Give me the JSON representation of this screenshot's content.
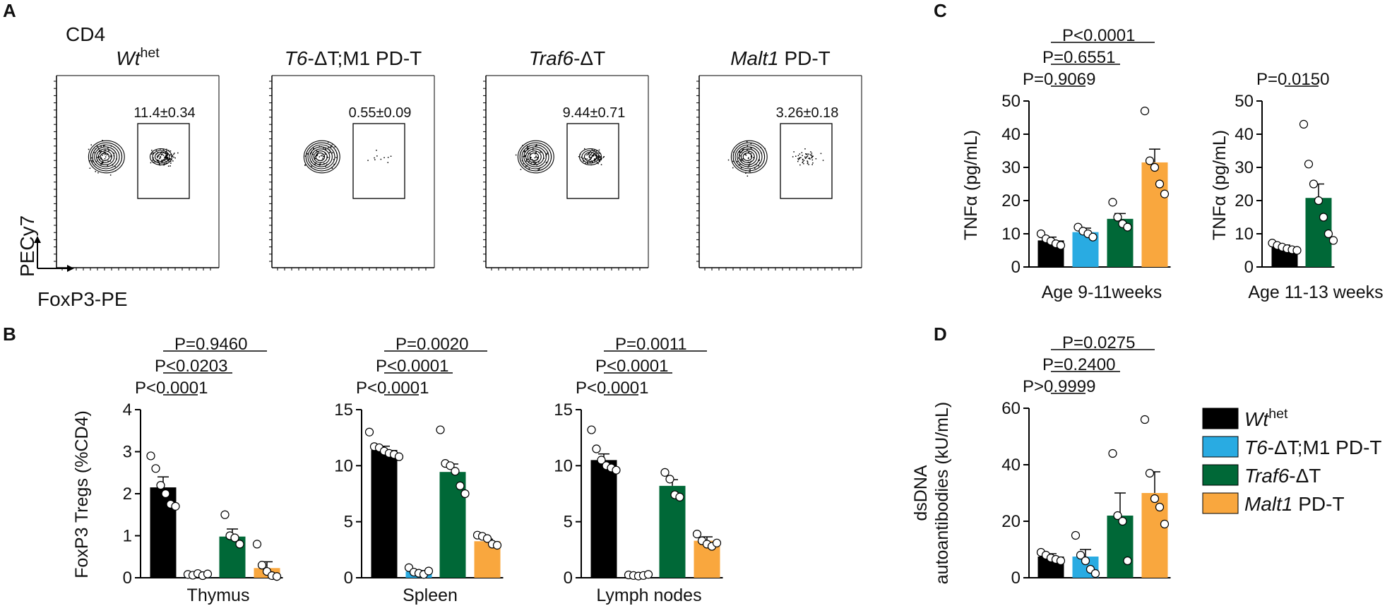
{
  "panels": {
    "a": "A",
    "b": "B",
    "c": "C",
    "d": "D"
  },
  "colors": {
    "wt": "#000000",
    "t6m1": "#29abe2",
    "traf6": "#006837",
    "malt1": "#f9a73e"
  },
  "flow": {
    "population": "CD4",
    "y_axis": "PECy7",
    "x_axis": "FoxP3-PE",
    "plots": [
      {
        "title_italic": "Wt",
        "title_sup": "het",
        "title_rest": "",
        "gate_pct": "11.4±0.34"
      },
      {
        "title_italic": "T6",
        "title_sup": "",
        "title_rest": "-ΔT;M1 PD-T",
        "gate_pct": "0.55±0.09"
      },
      {
        "title_italic": "Traf6",
        "title_sup": "",
        "title_rest": "-ΔT",
        "gate_pct": "9.44±0.71"
      },
      {
        "title_italic": "Malt1",
        "title_sup": "",
        "title_rest": " PD-T",
        "gate_pct": "3.26±0.18"
      }
    ]
  },
  "legend": [
    {
      "italic": "Wt",
      "sup": "het",
      "rest": "",
      "key": "wt"
    },
    {
      "italic": "T6",
      "sup": "",
      "rest": "-ΔT;M1 PD-T",
      "key": "t6m1"
    },
    {
      "italic": "Traf6",
      "sup": "",
      "rest": "-ΔT",
      "key": "traf6"
    },
    {
      "italic": "Malt1",
      "sup": "",
      "rest": " PD-T",
      "key": "malt1"
    }
  ],
  "chart_data": [
    {
      "id": "B-thymus",
      "type": "bar",
      "xlabel": "Thymus",
      "ylabel": "FoxP3 Tregs (%CD4)",
      "ylim": [
        0,
        4
      ],
      "yticks": [
        0,
        1,
        2,
        3,
        4
      ],
      "groups": [
        "Wt het",
        "T6-ΔT;M1 PD-T",
        "Traf6-ΔT",
        "Malt1 PD-T"
      ],
      "values": [
        2.15,
        0.08,
        0.98,
        0.23
      ],
      "sem": [
        0.25,
        0.03,
        0.18,
        0.15
      ],
      "points": [
        [
          2.9,
          2.6,
          2.2,
          2.0,
          1.75,
          1.7
        ],
        [
          0.08,
          0.06,
          0.1,
          0.05,
          0.09
        ],
        [
          1.5,
          1.0,
          0.95,
          0.8
        ],
        [
          0.8,
          0.3,
          0.15,
          0.05,
          0.03
        ]
      ],
      "pvalues": [
        {
          "text": "P<0.0001",
          "groups": [
            0,
            1
          ]
        },
        {
          "text": "P<0.0203",
          "groups": [
            0,
            2
          ]
        },
        {
          "text": "P=0.9460",
          "groups": [
            0,
            3
          ]
        }
      ]
    },
    {
      "id": "B-spleen",
      "type": "bar",
      "xlabel": "Spleen",
      "ylabel": "",
      "ylim": [
        0,
        15
      ],
      "yticks": [
        0,
        5,
        10,
        15
      ],
      "groups": [
        "Wt het",
        "T6-ΔT;M1 PD-T",
        "Traf6-ΔT",
        "Malt1 PD-T"
      ],
      "values": [
        11.4,
        0.55,
        9.44,
        3.26
      ],
      "sem": [
        0.34,
        0.09,
        0.71,
        0.18
      ],
      "points": [
        [
          13.0,
          11.7,
          11.6,
          11.3,
          11.1,
          11.0,
          10.8
        ],
        [
          0.9,
          0.5,
          0.4,
          0.3,
          0.6
        ],
        [
          13.2,
          10.2,
          10.0,
          9.5,
          8.2,
          7.5
        ],
        [
          3.8,
          3.7,
          3.5,
          3.0,
          2.9
        ]
      ],
      "pvalues": [
        {
          "text": "P<0.0001",
          "groups": [
            0,
            1
          ]
        },
        {
          "text": "P<0.0001",
          "groups": [
            0,
            2
          ]
        },
        {
          "text": "P=0.0020",
          "groups": [
            0,
            3
          ]
        }
      ]
    },
    {
      "id": "B-lymph",
      "type": "bar",
      "xlabel": "Lymph nodes",
      "ylabel": "",
      "ylim": [
        0,
        15
      ],
      "yticks": [
        0,
        5,
        10,
        15
      ],
      "groups": [
        "Wt het",
        "T6-ΔT;M1 PD-T",
        "Traf6-ΔT",
        "Malt1 PD-T"
      ],
      "values": [
        10.5,
        0.2,
        8.2,
        3.3
      ],
      "sem": [
        0.55,
        0.05,
        0.55,
        0.35
      ],
      "points": [
        [
          13.2,
          11.5,
          10.5,
          10.0,
          9.8,
          9.6
        ],
        [
          0.25,
          0.2,
          0.15,
          0.2,
          0.3
        ],
        [
          9.4,
          8.8,
          7.4,
          7.2
        ],
        [
          3.9,
          3.3,
          3.0,
          2.8,
          3.1
        ]
      ],
      "pvalues": [
        {
          "text": "P<0.0001",
          "groups": [
            0,
            1
          ]
        },
        {
          "text": "P<0.0001",
          "groups": [
            0,
            2
          ]
        },
        {
          "text": "P=0.0011",
          "groups": [
            0,
            3
          ]
        }
      ]
    },
    {
      "id": "C-left",
      "type": "bar",
      "xlabel": "Age 9-11weeks",
      "ylabel": "TNFα (pg/mL)",
      "ylim": [
        0,
        50
      ],
      "yticks": [
        0,
        10,
        20,
        30,
        40,
        50
      ],
      "groups": [
        "Wt het",
        "T6-ΔT;M1 PD-T",
        "Traf6-ΔT",
        "Malt1 PD-T"
      ],
      "values": [
        8.0,
        10.5,
        14.5,
        31.5
      ],
      "sem": [
        1.0,
        1.2,
        1.6,
        4.0
      ],
      "points": [
        [
          10.0,
          8.5,
          7.8,
          7.0,
          6.5
        ],
        [
          12.0,
          10.8,
          10.0,
          9.0
        ],
        [
          19.5,
          15.0,
          13.0,
          12.0
        ],
        [
          47.0,
          32.0,
          30.0,
          25.0,
          22.0
        ]
      ],
      "pvalues": [
        {
          "text": "P=0.9069",
          "groups": [
            0,
            1
          ]
        },
        {
          "text": "P=0.6551",
          "groups": [
            0,
            2
          ]
        },
        {
          "text": "P<0.0001",
          "groups": [
            0,
            3
          ]
        }
      ]
    },
    {
      "id": "C-right",
      "type": "bar",
      "xlabel": "Age 11-13 weeks",
      "ylabel": "TNFα (pg/mL)",
      "ylim": [
        0,
        50
      ],
      "yticks": [
        0,
        10,
        20,
        30,
        40,
        50
      ],
      "groups": [
        "Wt het",
        "Traf6-ΔT"
      ],
      "values": [
        6.0,
        20.8
      ],
      "sem": [
        0.6,
        4.2
      ],
      "points": [
        [
          7.2,
          6.5,
          6.0,
          5.5,
          5.2,
          5.0
        ],
        [
          43.0,
          31.0,
          25.0,
          20.0,
          15.0,
          10.0,
          8.0
        ]
      ],
      "pvalues": [
        {
          "text": "P=0.0150",
          "groups": [
            0,
            1
          ]
        }
      ]
    },
    {
      "id": "D",
      "type": "bar",
      "xlabel": "",
      "ylabel": "dsDNA autoantibodies (kU/mL)",
      "ylim": [
        0,
        60
      ],
      "yticks": [
        0,
        20,
        40,
        60
      ],
      "groups": [
        "Wt het",
        "T6-ΔT;M1 PD-T",
        "Traf6-ΔT",
        "Malt1 PD-T"
      ],
      "values": [
        7.5,
        7.5,
        22.0,
        30.0
      ],
      "sem": [
        1.0,
        2.5,
        8.0,
        7.5
      ],
      "points": [
        [
          9.0,
          8.0,
          7.0,
          6.5,
          6.0
        ],
        [
          15.0,
          8.0,
          6.0,
          3.0,
          1.5
        ],
        [
          44.0,
          22.0,
          20.0,
          6.0
        ],
        [
          56.0,
          37.0,
          28.0,
          25.0,
          19.0
        ]
      ],
      "pvalues": [
        {
          "text": "P>0.9999",
          "groups": [
            0,
            1
          ]
        },
        {
          "text": "P=0.2400",
          "groups": [
            0,
            2
          ]
        },
        {
          "text": "P=0.0275",
          "groups": [
            0,
            3
          ]
        }
      ]
    }
  ]
}
